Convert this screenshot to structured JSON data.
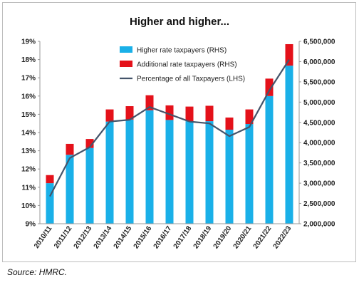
{
  "chart_data": {
    "type": "bar",
    "title": "Higher and higher...",
    "categories": [
      "2010/11",
      "2011/12",
      "2012/13",
      "2013/14",
      "2014/15",
      "2015/16",
      "2016/17",
      "2017/18",
      "2018/19",
      "2019/20",
      "2020/21",
      "2021/22",
      "2022/23"
    ],
    "series": [
      {
        "name": "Higher rate taxpayers (RHS)",
        "type": "stacked-bar",
        "axis": "right",
        "color": "#1ab0e8",
        "values": [
          3000000,
          3700000,
          3870000,
          4520000,
          4570000,
          4800000,
          4560000,
          4530000,
          4530000,
          4320000,
          4460000,
          5150000,
          5900000
        ]
      },
      {
        "name": "Additional rate taxpayers (RHS)",
        "type": "stacked-bar",
        "axis": "right",
        "color": "#e4111a",
        "values": [
          200000,
          270000,
          220000,
          300000,
          330000,
          370000,
          360000,
          360000,
          380000,
          300000,
          360000,
          430000,
          530000
        ]
      },
      {
        "name": "Percentage of all Taxpayers (LHS)",
        "type": "line",
        "axis": "left",
        "color": "#44546a",
        "values": [
          10.5,
          12.6,
          13.2,
          14.6,
          14.7,
          15.4,
          15.0,
          14.6,
          14.5,
          13.8,
          14.3,
          16.3,
          18.0
        ]
      }
    ],
    "left_axis": {
      "min": 9,
      "max": 19,
      "ticks": [
        "9%",
        "10%",
        "11%",
        "12%",
        "13%",
        "14%",
        "15%",
        "16%",
        "17%",
        "18%",
        "19%"
      ]
    },
    "right_axis": {
      "min": 2000000,
      "max": 6500000,
      "ticks": [
        "2,000,000",
        "2,500,000",
        "3,000,000",
        "3,500,000",
        "4,000,000",
        "4,500,000",
        "5,000,000",
        "5,500,000",
        "6,000,000",
        "6,500,000"
      ]
    },
    "grid": false,
    "legend_position": "top-center"
  },
  "source": "Source: HMRC."
}
